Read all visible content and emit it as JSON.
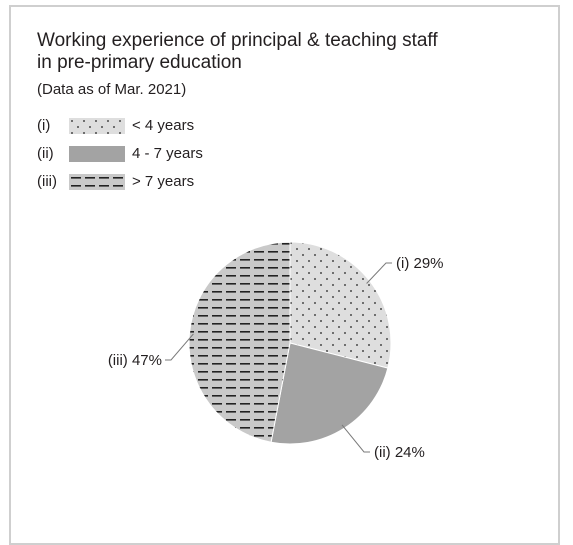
{
  "chart_data": {
    "type": "pie",
    "title_lines": [
      "Working experience of principal & teaching staff",
      "in pre-primary education"
    ],
    "subtitle": "(Data as of Mar. 2021)",
    "legend_position": "top-left",
    "slices": [
      {
        "marker": "(i)",
        "label": "< 4 years",
        "value": 29,
        "data_label": "(i) 29%",
        "pattern": "dots",
        "color": "#dedede"
      },
      {
        "marker": "(ii)",
        "label": "4 - 7 years",
        "value": 24,
        "data_label": "(ii) 24%",
        "pattern": "solid",
        "color": "#a3a3a3"
      },
      {
        "marker": "(iii)",
        "label": "> 7 years",
        "value": 47,
        "data_label": "(iii) 47%",
        "pattern": "dashes",
        "color": "#c9c9c9"
      }
    ],
    "start_angle_deg": 0,
    "direction": "clockwise",
    "slice_edge_color": "#ffffff",
    "leader_line_color": "#7a7a7a"
  }
}
